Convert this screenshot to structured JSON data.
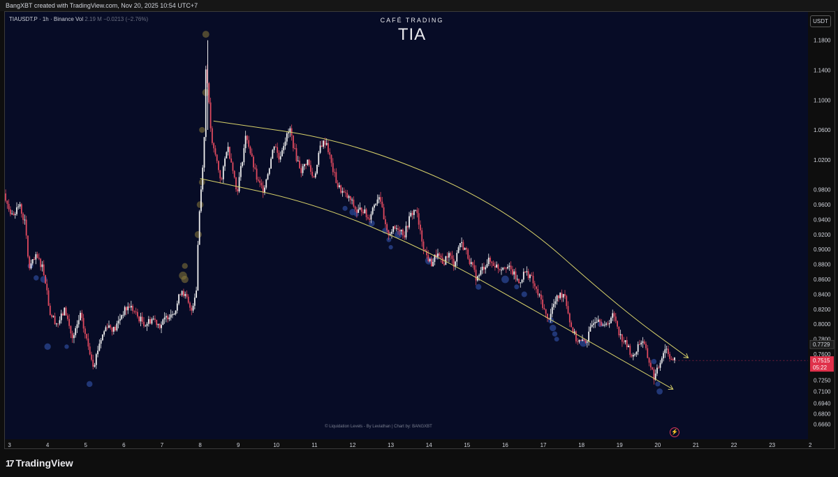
{
  "header": {
    "credit_line": "BangXBT created with TradingView.com, Nov 20, 2025 10:54 UTC+7"
  },
  "symbol": {
    "ticker": "TIAUSDT.P · 1h · Binance",
    "vol_label": "Vol",
    "vol_value": "2.19 M",
    "change": "−0.0213 (−2.76%)"
  },
  "branding": {
    "cafe": "CAFÉ TRADING",
    "coin": "TIA"
  },
  "currency_button": "USDT",
  "watermark": "© Liquidation Levels - By Leviathan | Chart by: BANGXBT",
  "footer": {
    "logo_mark": "17",
    "logo_text": "TradingView"
  },
  "colors": {
    "bg": "#070c26",
    "up": "#f0f0f0",
    "down": "#e04a5f",
    "channel": "#d8d26a",
    "liq_blue": "#2c4a9a",
    "liq_gold": "#8a7a3a",
    "price_tag": "#e0314b"
  },
  "chart_data": {
    "type": "candlestick",
    "title": "TIA",
    "ylim": [
      0.646,
      1.218
    ],
    "y_ticks": [
      "1.1800",
      "1.1400",
      "1.1000",
      "1.0600",
      "1.0200",
      "0.9800",
      "0.9600",
      "0.9400",
      "0.9200",
      "0.9000",
      "0.8800",
      "0.8600",
      "0.8400",
      "0.8200",
      "0.8000",
      "0.7800",
      "0.7600",
      "0.7400",
      "0.7250",
      "0.7100",
      "0.6940",
      "0.6800",
      "0.6660"
    ],
    "y_tick_values": [
      1.18,
      1.14,
      1.1,
      1.06,
      1.02,
      0.98,
      0.96,
      0.94,
      0.92,
      0.9,
      0.88,
      0.86,
      0.84,
      0.82,
      0.8,
      0.78,
      0.76,
      0.74,
      0.725,
      0.71,
      0.694,
      0.68,
      0.666
    ],
    "x_labels": [
      "3",
      "4",
      "5",
      "6",
      "7",
      "8",
      "9",
      "10",
      "11",
      "12",
      "13",
      "14",
      "15",
      "16",
      "17",
      "18",
      "19",
      "20",
      "21",
      "22",
      "23",
      "2"
    ],
    "x_days": [
      3,
      4,
      5,
      6,
      7,
      8,
      9,
      10,
      11,
      12,
      13,
      14,
      15,
      16,
      17,
      18,
      19,
      20,
      21,
      22,
      23,
      24
    ],
    "x_range_days": [
      2.88,
      23.94
    ],
    "last_day": 20.45,
    "price_path": [
      [
        2.9,
        0.975
      ],
      [
        3.1,
        0.945
      ],
      [
        3.3,
        0.96
      ],
      [
        3.45,
        0.935
      ],
      [
        3.55,
        0.875
      ],
      [
        3.75,
        0.89
      ],
      [
        3.9,
        0.878
      ],
      [
        4.0,
        0.855
      ],
      [
        4.1,
        0.815
      ],
      [
        4.3,
        0.8
      ],
      [
        4.5,
        0.82
      ],
      [
        4.7,
        0.778
      ],
      [
        4.9,
        0.812
      ],
      [
        5.1,
        0.772
      ],
      [
        5.25,
        0.745
      ],
      [
        5.4,
        0.775
      ],
      [
        5.6,
        0.8
      ],
      [
        5.8,
        0.792
      ],
      [
        6.0,
        0.815
      ],
      [
        6.2,
        0.825
      ],
      [
        6.4,
        0.81
      ],
      [
        6.6,
        0.8
      ],
      [
        6.8,
        0.808
      ],
      [
        7.0,
        0.798
      ],
      [
        7.2,
        0.812
      ],
      [
        7.4,
        0.82
      ],
      [
        7.55,
        0.848
      ],
      [
        7.7,
        0.832
      ],
      [
        7.8,
        0.815
      ],
      [
        7.95,
        0.85
      ],
      [
        8.0,
        0.935
      ],
      [
        8.08,
        0.99
      ],
      [
        8.15,
        1.05
      ],
      [
        8.2,
        1.16
      ],
      [
        8.25,
        1.11
      ],
      [
        8.35,
        1.04
      ],
      [
        8.45,
        1.025
      ],
      [
        8.6,
        0.99
      ],
      [
        8.75,
        1.04
      ],
      [
        8.9,
        1.01
      ],
      [
        9.0,
        0.975
      ],
      [
        9.1,
        1.005
      ],
      [
        9.25,
        1.055
      ],
      [
        9.4,
        1.02
      ],
      [
        9.55,
        0.99
      ],
      [
        9.7,
        0.98
      ],
      [
        9.85,
        1.01
      ],
      [
        10.0,
        1.045
      ],
      [
        10.1,
        1.02
      ],
      [
        10.25,
        1.045
      ],
      [
        10.4,
        1.06
      ],
      [
        10.55,
        1.025
      ],
      [
        10.7,
        1.005
      ],
      [
        10.85,
        1.02
      ],
      [
        11.0,
        0.995
      ],
      [
        11.1,
        1.01
      ],
      [
        11.2,
        1.04
      ],
      [
        11.35,
        1.045
      ],
      [
        11.5,
        1.01
      ],
      [
        11.65,
        0.985
      ],
      [
        11.8,
        0.975
      ],
      [
        12.0,
        0.965
      ],
      [
        12.15,
        0.95
      ],
      [
        12.3,
        0.955
      ],
      [
        12.45,
        0.94
      ],
      [
        12.6,
        0.96
      ],
      [
        12.75,
        0.975
      ],
      [
        12.85,
        0.94
      ],
      [
        12.95,
        0.92
      ],
      [
        13.05,
        0.925
      ],
      [
        13.25,
        0.93
      ],
      [
        13.4,
        0.92
      ],
      [
        13.55,
        0.945
      ],
      [
        13.7,
        0.955
      ],
      [
        13.8,
        0.925
      ],
      [
        13.95,
        0.895
      ],
      [
        14.1,
        0.88
      ],
      [
        14.25,
        0.895
      ],
      [
        14.4,
        0.88
      ],
      [
        14.55,
        0.895
      ],
      [
        14.7,
        0.88
      ],
      [
        14.85,
        0.91
      ],
      [
        15.0,
        0.9
      ],
      [
        15.15,
        0.88
      ],
      [
        15.3,
        0.86
      ],
      [
        15.45,
        0.875
      ],
      [
        15.6,
        0.885
      ],
      [
        15.75,
        0.88
      ],
      [
        15.9,
        0.875
      ],
      [
        16.05,
        0.88
      ],
      [
        16.25,
        0.868
      ],
      [
        16.4,
        0.855
      ],
      [
        16.55,
        0.87
      ],
      [
        16.7,
        0.865
      ],
      [
        16.85,
        0.845
      ],
      [
        17.0,
        0.83
      ],
      [
        17.15,
        0.805
      ],
      [
        17.3,
        0.825
      ],
      [
        17.45,
        0.838
      ],
      [
        17.6,
        0.842
      ],
      [
        17.75,
        0.8
      ],
      [
        17.9,
        0.78
      ],
      [
        18.05,
        0.775
      ],
      [
        18.2,
        0.78
      ],
      [
        18.35,
        0.805
      ],
      [
        18.5,
        0.81
      ],
      [
        18.65,
        0.795
      ],
      [
        18.85,
        0.812
      ],
      [
        18.95,
        0.805
      ],
      [
        19.05,
        0.785
      ],
      [
        19.25,
        0.77
      ],
      [
        19.4,
        0.755
      ],
      [
        19.55,
        0.775
      ],
      [
        19.65,
        0.778
      ],
      [
        19.75,
        0.76
      ],
      [
        19.85,
        0.745
      ],
      [
        19.95,
        0.728
      ],
      [
        20.05,
        0.74
      ],
      [
        20.15,
        0.758
      ],
      [
        20.25,
        0.77
      ],
      [
        20.35,
        0.758
      ],
      [
        20.45,
        0.7515
      ]
    ],
    "channel_upper": [
      [
        8.35,
        1.072
      ],
      [
        12.0,
        1.045
      ],
      [
        16.0,
        0.958
      ],
      [
        19.0,
        0.822
      ],
      [
        20.8,
        0.755
      ]
    ],
    "channel_lower": [
      [
        8.0,
        0.995
      ],
      [
        11.0,
        0.962
      ],
      [
        14.0,
        0.898
      ],
      [
        17.0,
        0.812
      ],
      [
        20.4,
        0.713
      ]
    ],
    "liq_blue": [
      [
        3.55,
        0.878
      ],
      [
        3.7,
        0.862
      ],
      [
        3.9,
        0.86
      ],
      [
        4.0,
        0.77
      ],
      [
        4.5,
        0.77
      ],
      [
        5.1,
        0.72
      ],
      [
        11.8,
        0.955
      ],
      [
        12.0,
        0.95
      ],
      [
        12.1,
        0.947
      ],
      [
        12.5,
        0.935
      ],
      [
        12.85,
        0.925
      ],
      [
        12.95,
        0.913
      ],
      [
        13.0,
        0.903
      ],
      [
        13.2,
        0.92
      ],
      [
        14.0,
        0.885
      ],
      [
        14.2,
        0.89
      ],
      [
        15.3,
        0.85
      ],
      [
        16.0,
        0.86
      ],
      [
        16.3,
        0.85
      ],
      [
        16.5,
        0.84
      ],
      [
        17.2,
        0.805
      ],
      [
        17.25,
        0.795
      ],
      [
        17.3,
        0.787
      ],
      [
        17.35,
        0.78
      ],
      [
        18.05,
        0.775
      ],
      [
        18.5,
        0.8
      ],
      [
        20.0,
        0.72
      ],
      [
        20.05,
        0.71
      ],
      [
        19.9,
        0.75
      ]
    ],
    "liq_gold": [
      [
        8.15,
        1.188
      ],
      [
        8.15,
        1.11
      ],
      [
        8.05,
        1.06
      ],
      [
        8.05,
        0.99
      ],
      [
        8.0,
        0.96
      ],
      [
        7.95,
        0.92
      ],
      [
        7.6,
        0.878
      ],
      [
        7.55,
        0.865
      ],
      [
        7.6,
        0.86
      ]
    ],
    "current_price": {
      "value": 0.7515,
      "label": "0.7515",
      "countdown": "05:22"
    },
    "prev_price": {
      "value": 0.7729,
      "label": "0.7729"
    }
  }
}
